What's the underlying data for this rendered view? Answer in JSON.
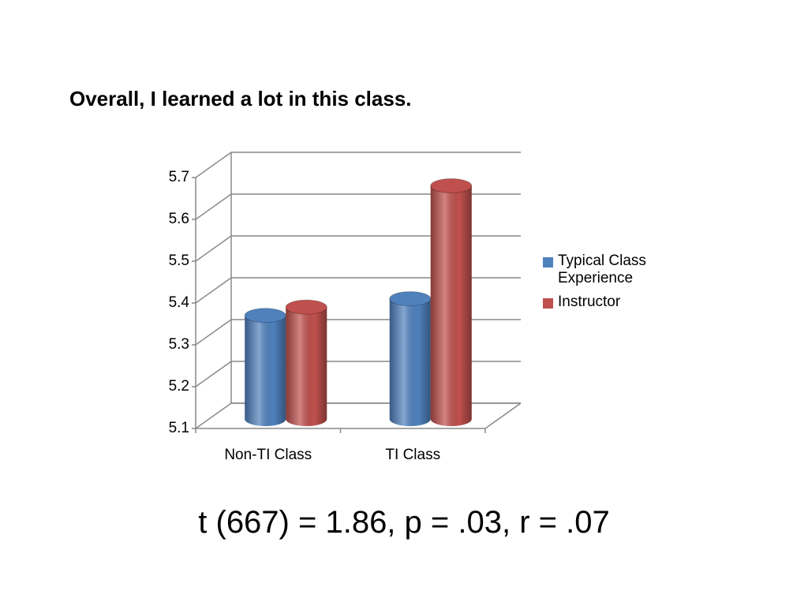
{
  "title": "Overall, I learned a lot in this class.",
  "annotation": "t (667) = 1.86, p = .03, r = .07",
  "chart_data": {
    "type": "bar3d",
    "categories": [
      "Non-TI Class",
      "TI Class"
    ],
    "series": [
      {
        "name": "Typical Class Experience",
        "color": "#4f81bd",
        "values": [
          5.34,
          5.38
        ]
      },
      {
        "name": "Instructor",
        "color": "#c0504d",
        "values": [
          5.36,
          5.65
        ]
      }
    ],
    "ylim": [
      5.1,
      5.7
    ],
    "yticks": [
      5.1,
      5.2,
      5.3,
      5.4,
      5.5,
      5.6,
      5.7
    ],
    "grid": true,
    "legend": "right"
  }
}
